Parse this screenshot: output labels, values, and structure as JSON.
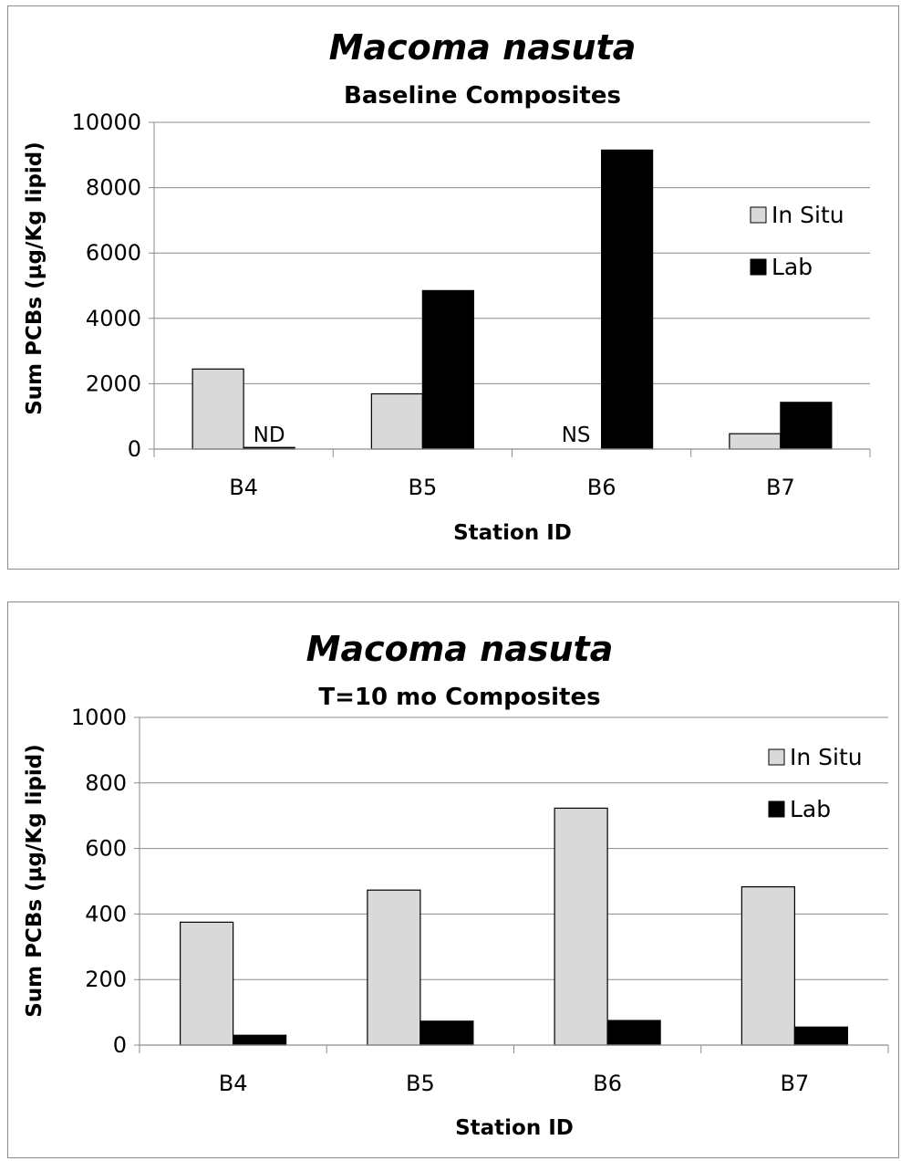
{
  "chart_data": [
    {
      "type": "bar",
      "title": "Macoma nasuta",
      "subtitle": "Baseline Composites",
      "xlabel": "Station ID",
      "ylabel": "Sum PCBs (µg/Kg lipid)",
      "ylim": [
        0,
        10000
      ],
      "yticks": [
        "0",
        "2000",
        "4000",
        "6000",
        "8000",
        "10000"
      ],
      "categories": [
        "B4",
        "B5",
        "B6",
        "B7"
      ],
      "series": [
        {
          "name": "In Situ",
          "color": "#d9d9d9",
          "values": [
            2450,
            1690,
            0,
            470
          ]
        },
        {
          "name": "Lab",
          "color": "#000000",
          "values": [
            50,
            4850,
            9150,
            1430
          ]
        }
      ],
      "annotations": [
        {
          "text": "ND",
          "category": "B4",
          "series": "Lab"
        },
        {
          "text": "NS",
          "category": "B6",
          "series": "In Situ"
        }
      ],
      "legend": {
        "position": "right",
        "items": [
          "In Situ",
          "Lab"
        ]
      },
      "grid": true
    },
    {
      "type": "bar",
      "title": "Macoma nasuta",
      "subtitle": "T=10 mo Composites",
      "xlabel": "Station ID",
      "ylabel": "Sum PCBs (µg/Kg lipid)",
      "ylim": [
        0,
        1000
      ],
      "yticks": [
        "0",
        "200",
        "400",
        "600",
        "800",
        "1000"
      ],
      "categories": [
        "B4",
        "B5",
        "B6",
        "B7"
      ],
      "series": [
        {
          "name": "In Situ",
          "color": "#d9d9d9",
          "values": [
            375,
            473,
            723,
            483
          ]
        },
        {
          "name": "Lab",
          "color": "#000000",
          "values": [
            30,
            73,
            75,
            55
          ]
        }
      ],
      "annotations": [],
      "legend": {
        "position": "top-right",
        "items": [
          "In Situ",
          "Lab"
        ]
      },
      "grid": true
    }
  ]
}
